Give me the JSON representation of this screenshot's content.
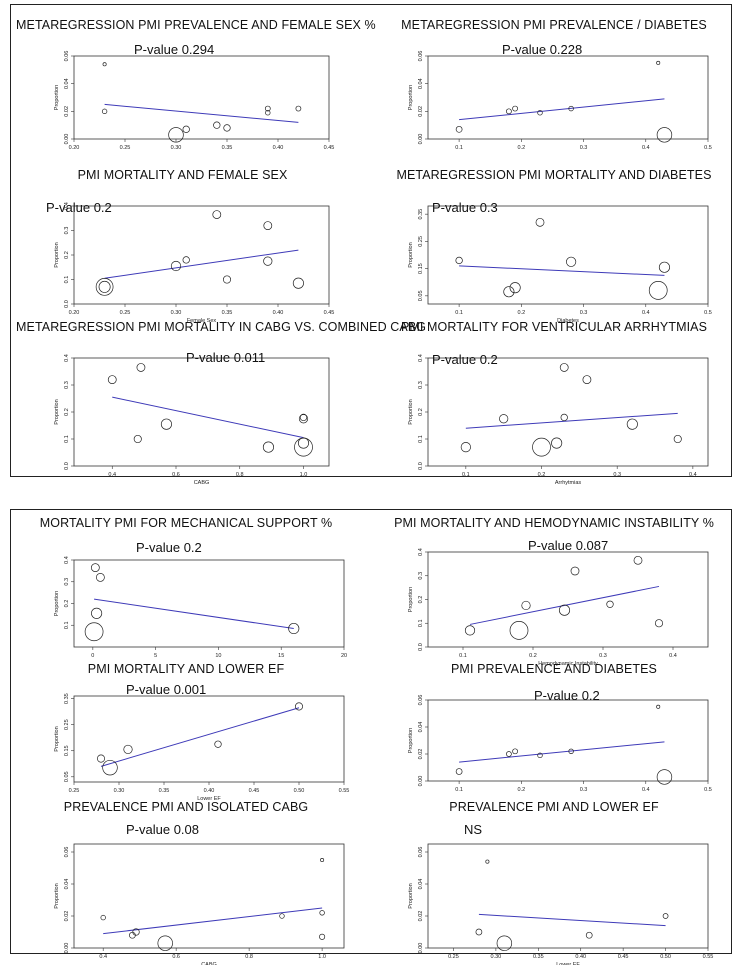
{
  "chart_data": [
    {
      "id": "p1",
      "type": "scatter",
      "title": "METAREGRESSION PMI PREVALENCE AND FEMALE SEX %",
      "annotation": "P-value 0.294",
      "xlabel": "",
      "ylabel": "Proportion",
      "xlim": [
        0.2,
        0.45
      ],
      "ylim": [
        0,
        0.06
      ],
      "xticks": [
        "0.20",
        "0.25",
        "0.30",
        "0.35",
        "0.40",
        "0.45"
      ],
      "yticks": [
        "0.00",
        "0.02",
        "0.04",
        "0.06"
      ],
      "points": [
        {
          "x": 0.23,
          "y": 0.054,
          "w": 0.3
        },
        {
          "x": 0.23,
          "y": 0.02,
          "w": 0.6
        },
        {
          "x": 0.3,
          "y": 0.003,
          "w": 6
        },
        {
          "x": 0.31,
          "y": 0.007,
          "w": 1.2
        },
        {
          "x": 0.34,
          "y": 0.01,
          "w": 1.2
        },
        {
          "x": 0.35,
          "y": 0.008,
          "w": 1.2
        },
        {
          "x": 0.39,
          "y": 0.022,
          "w": 0.7
        },
        {
          "x": 0.39,
          "y": 0.019,
          "w": 0.6
        },
        {
          "x": 0.42,
          "y": 0.022,
          "w": 0.7
        }
      ],
      "line": [
        {
          "x": 0.23,
          "y": 0.025
        },
        {
          "x": 0.42,
          "y": 0.012
        }
      ]
    },
    {
      "id": "p2",
      "type": "scatter",
      "title": "METAREGRESSION PMI PREVALENCE / DIABETES",
      "annotation": "P-value 0.228",
      "xlabel": "",
      "ylabel": "Proportion",
      "xlim": [
        0.05,
        0.5
      ],
      "ylim": [
        0,
        0.06
      ],
      "xticks": [
        "0.1",
        "0.2",
        "0.3",
        "0.4",
        "0.5"
      ],
      "yticks": [
        "0.00",
        "0.02",
        "0.04",
        "0.06"
      ],
      "points": [
        {
          "x": 0.1,
          "y": 0.007,
          "w": 1
        },
        {
          "x": 0.18,
          "y": 0.02,
          "w": 0.7
        },
        {
          "x": 0.19,
          "y": 0.022,
          "w": 0.7
        },
        {
          "x": 0.23,
          "y": 0.019,
          "w": 0.6
        },
        {
          "x": 0.28,
          "y": 0.022,
          "w": 0.6
        },
        {
          "x": 0.42,
          "y": 0.055,
          "w": 0.3
        },
        {
          "x": 0.43,
          "y": 0.003,
          "w": 6
        }
      ],
      "line": [
        {
          "x": 0.1,
          "y": 0.014
        },
        {
          "x": 0.43,
          "y": 0.029
        }
      ]
    },
    {
      "id": "p3",
      "type": "scatter",
      "title": "PMI MORTALITY AND FEMALE SEX",
      "annotation": "P-value 0.2",
      "xlabel": "Female Sex",
      "ylabel": "Proportion",
      "xlim": [
        0.2,
        0.45
      ],
      "ylim": [
        0,
        0.4
      ],
      "xticks": [
        "0.20",
        "0.25",
        "0.30",
        "0.35",
        "0.40",
        "0.45"
      ],
      "yticks": [
        "0.0",
        "0.1",
        "0.2",
        "0.3",
        "0.4"
      ],
      "points": [
        {
          "x": 0.23,
          "y": 0.07,
          "w": 8
        },
        {
          "x": 0.23,
          "y": 0.07,
          "w": 3.5
        },
        {
          "x": 0.3,
          "y": 0.155,
          "w": 2.5
        },
        {
          "x": 0.31,
          "y": 0.18,
          "w": 1.2
        },
        {
          "x": 0.34,
          "y": 0.365,
          "w": 1.8
        },
        {
          "x": 0.35,
          "y": 0.1,
          "w": 1.5
        },
        {
          "x": 0.39,
          "y": 0.32,
          "w": 1.8
        },
        {
          "x": 0.39,
          "y": 0.175,
          "w": 2
        },
        {
          "x": 0.42,
          "y": 0.085,
          "w": 3
        }
      ],
      "line": [
        {
          "x": 0.23,
          "y": 0.105
        },
        {
          "x": 0.42,
          "y": 0.22
        }
      ]
    },
    {
      "id": "p4",
      "type": "scatter",
      "title": "METAREGRESSION PMI MORTALITY AND DIABETES",
      "annotation": "P-value 0.3",
      "xlabel": "Diabetes",
      "ylabel": "Proportion",
      "xlim": [
        0.05,
        0.5
      ],
      "ylim": [
        0.02,
        0.38
      ],
      "xticks": [
        "0.1",
        "0.2",
        "0.3",
        "0.4",
        "0.5"
      ],
      "yticks": [
        "0.05",
        "0.15",
        "0.25",
        "0.35"
      ],
      "points": [
        {
          "x": 0.1,
          "y": 0.18,
          "w": 1.2
        },
        {
          "x": 0.18,
          "y": 0.065,
          "w": 3
        },
        {
          "x": 0.19,
          "y": 0.08,
          "w": 3
        },
        {
          "x": 0.23,
          "y": 0.32,
          "w": 1.8
        },
        {
          "x": 0.28,
          "y": 0.175,
          "w": 2.5
        },
        {
          "x": 0.42,
          "y": 0.07,
          "w": 9
        },
        {
          "x": 0.43,
          "y": 0.155,
          "w": 3
        }
      ],
      "line": [
        {
          "x": 0.1,
          "y": 0.16
        },
        {
          "x": 0.43,
          "y": 0.125
        }
      ]
    },
    {
      "id": "p5",
      "type": "scatter",
      "title": "METAREGRESSION PMI MORTALITY IN CABG VS. COMBINED CABG",
      "annotation": "P-value 0.011",
      "xlabel": "CABG",
      "ylabel": "Proportion",
      "xlim": [
        0.28,
        1.08
      ],
      "ylim": [
        0,
        0.4
      ],
      "xticks": [
        "0.4",
        "0.6",
        "0.8",
        "1.0"
      ],
      "yticks": [
        "0.0",
        "0.1",
        "0.2",
        "0.3",
        "0.4"
      ],
      "points": [
        {
          "x": 0.4,
          "y": 0.32,
          "w": 1.8
        },
        {
          "x": 0.48,
          "y": 0.1,
          "w": 1.5
        },
        {
          "x": 0.49,
          "y": 0.365,
          "w": 1.8
        },
        {
          "x": 0.57,
          "y": 0.155,
          "w": 3
        },
        {
          "x": 0.89,
          "y": 0.07,
          "w": 3
        },
        {
          "x": 1.0,
          "y": 0.18,
          "w": 1.2
        },
        {
          "x": 1.0,
          "y": 0.175,
          "w": 2
        },
        {
          "x": 1.0,
          "y": 0.085,
          "w": 3
        },
        {
          "x": 1.0,
          "y": 0.07,
          "w": 9
        }
      ],
      "line": [
        {
          "x": 0.4,
          "y": 0.255
        },
        {
          "x": 1.0,
          "y": 0.105
        }
      ]
    },
    {
      "id": "p6",
      "type": "scatter",
      "title": "PMI MORTALITY FOR VENTRICULAR ARRHYTMIAS",
      "annotation": "P-value 0.2",
      "xlabel": "Arrhytmias",
      "ylabel": "Proportion",
      "xlim": [
        0.05,
        0.42
      ],
      "ylim": [
        0,
        0.4
      ],
      "xticks": [
        "0.1",
        "0.2",
        "0.3",
        "0.4"
      ],
      "yticks": [
        "0.0",
        "0.1",
        "0.2",
        "0.3",
        "0.4"
      ],
      "points": [
        {
          "x": 0.1,
          "y": 0.07,
          "w": 2.5
        },
        {
          "x": 0.15,
          "y": 0.175,
          "w": 2
        },
        {
          "x": 0.2,
          "y": 0.07,
          "w": 9
        },
        {
          "x": 0.22,
          "y": 0.085,
          "w": 3
        },
        {
          "x": 0.23,
          "y": 0.365,
          "w": 1.8
        },
        {
          "x": 0.23,
          "y": 0.18,
          "w": 1.2
        },
        {
          "x": 0.26,
          "y": 0.32,
          "w": 1.8
        },
        {
          "x": 0.32,
          "y": 0.155,
          "w": 3
        },
        {
          "x": 0.38,
          "y": 0.1,
          "w": 1.5
        }
      ],
      "line": [
        {
          "x": 0.1,
          "y": 0.14
        },
        {
          "x": 0.38,
          "y": 0.195
        }
      ]
    },
    {
      "id": "p7",
      "type": "scatter",
      "title": "MORTALITY PMI FOR MECHANICAL SUPPORT %",
      "annotation": "P-value 0.2",
      "xlabel": "",
      "ylabel": "Proportion",
      "xlim": [
        -1.5,
        20
      ],
      "ylim": [
        0,
        0.4
      ],
      "xticks": [
        "0",
        "5",
        "10",
        "15",
        "20"
      ],
      "yticks": [
        "0.1",
        "0.2",
        "0.3",
        "0.4"
      ],
      "points": [
        {
          "x": 0.1,
          "y": 0.07,
          "w": 9
        },
        {
          "x": 0.2,
          "y": 0.365,
          "w": 1.8
        },
        {
          "x": 0.3,
          "y": 0.155,
          "w": 3
        },
        {
          "x": 0.6,
          "y": 0.32,
          "w": 1.8
        },
        {
          "x": 16,
          "y": 0.085,
          "w": 3
        }
      ],
      "line": [
        {
          "x": 0.1,
          "y": 0.22
        },
        {
          "x": 16,
          "y": 0.085
        }
      ]
    },
    {
      "id": "p8",
      "type": "scatter",
      "title": "PMI MORTALITY AND HEMODYNAMIC INSTABILITY %",
      "annotation": "P-value 0.087",
      "xlabel": "Hemodynamic Instability",
      "ylabel": "Proportion",
      "xlim": [
        0.05,
        0.45
      ],
      "ylim": [
        0,
        0.4
      ],
      "xticks": [
        "0.1",
        "0.2",
        "0.3",
        "0.4"
      ],
      "yticks": [
        "0.0",
        "0.1",
        "0.2",
        "0.3",
        "0.4"
      ],
      "points": [
        {
          "x": 0.11,
          "y": 0.07,
          "w": 2.5
        },
        {
          "x": 0.18,
          "y": 0.07,
          "w": 9
        },
        {
          "x": 0.19,
          "y": 0.175,
          "w": 2
        },
        {
          "x": 0.245,
          "y": 0.155,
          "w": 3
        },
        {
          "x": 0.26,
          "y": 0.32,
          "w": 1.8
        },
        {
          "x": 0.31,
          "y": 0.18,
          "w": 1.2
        },
        {
          "x": 0.35,
          "y": 0.365,
          "w": 1.8
        },
        {
          "x": 0.38,
          "y": 0.1,
          "w": 1.5
        }
      ],
      "line": [
        {
          "x": 0.11,
          "y": 0.095
        },
        {
          "x": 0.38,
          "y": 0.255
        }
      ]
    },
    {
      "id": "p9",
      "type": "scatter",
      "title": "PMI MORTALITY AND LOWER EF",
      "annotation": "P-value 0.001",
      "xlabel": "Lower EF",
      "ylabel": "Proportion",
      "xlim": [
        0.25,
        0.55
      ],
      "ylim": [
        0.03,
        0.36
      ],
      "xticks": [
        "0.25",
        "0.30",
        "0.35",
        "0.40",
        "0.45",
        "0.50",
        "0.55"
      ],
      "yticks": [
        "0.05",
        "0.15",
        "0.25",
        "0.35"
      ],
      "points": [
        {
          "x": 0.28,
          "y": 0.12,
          "w": 1.5
        },
        {
          "x": 0.29,
          "y": 0.085,
          "w": 6
        },
        {
          "x": 0.31,
          "y": 0.155,
          "w": 2
        },
        {
          "x": 0.41,
          "y": 0.175,
          "w": 1.2
        },
        {
          "x": 0.5,
          "y": 0.32,
          "w": 1.5
        }
      ],
      "line": [
        {
          "x": 0.28,
          "y": 0.09
        },
        {
          "x": 0.5,
          "y": 0.315
        }
      ]
    },
    {
      "id": "p10",
      "type": "scatter",
      "title": "PMI PREVALENCE AND DIABETES",
      "annotation": "P-value 0.2",
      "xlabel": "",
      "ylabel": "Proportion",
      "xlim": [
        0.05,
        0.5
      ],
      "ylim": [
        0,
        0.06
      ],
      "xticks": [
        "0.1",
        "0.2",
        "0.3",
        "0.4",
        "0.5"
      ],
      "yticks": [
        "0.00",
        "0.02",
        "0.04",
        "0.06"
      ],
      "points": [
        {
          "x": 0.1,
          "y": 0.007,
          "w": 1
        },
        {
          "x": 0.18,
          "y": 0.02,
          "w": 0.7
        },
        {
          "x": 0.19,
          "y": 0.022,
          "w": 0.7
        },
        {
          "x": 0.23,
          "y": 0.019,
          "w": 0.6
        },
        {
          "x": 0.28,
          "y": 0.022,
          "w": 0.6
        },
        {
          "x": 0.42,
          "y": 0.055,
          "w": 0.3
        },
        {
          "x": 0.43,
          "y": 0.003,
          "w": 6
        }
      ],
      "line": [
        {
          "x": 0.1,
          "y": 0.014
        },
        {
          "x": 0.43,
          "y": 0.029
        }
      ]
    },
    {
      "id": "p11",
      "type": "scatter",
      "title": "PREVALENCE PMI AND ISOLATED CABG",
      "annotation": "P-value 0.08",
      "xlabel": "CABG",
      "ylabel": "Proportion",
      "xlim": [
        0.32,
        1.06
      ],
      "ylim": [
        0,
        0.065
      ],
      "xticks": [
        "0.4",
        "0.6",
        "0.8",
        "1.0"
      ],
      "yticks": [
        "0.00",
        "0.02",
        "0.04",
        "0.06"
      ],
      "points": [
        {
          "x": 0.4,
          "y": 0.019,
          "w": 0.6
        },
        {
          "x": 0.48,
          "y": 0.008,
          "w": 1
        },
        {
          "x": 0.49,
          "y": 0.01,
          "w": 1.2
        },
        {
          "x": 0.57,
          "y": 0.003,
          "w": 6
        },
        {
          "x": 0.89,
          "y": 0.02,
          "w": 0.6
        },
        {
          "x": 1.0,
          "y": 0.055,
          "w": 0.3
        },
        {
          "x": 1.0,
          "y": 0.022,
          "w": 0.6
        },
        {
          "x": 1.0,
          "y": 0.007,
          "w": 0.8
        }
      ],
      "line": [
        {
          "x": 0.4,
          "y": 0.009
        },
        {
          "x": 1.0,
          "y": 0.025
        }
      ]
    },
    {
      "id": "p12",
      "type": "scatter",
      "title": "PREVALENCE PMI AND LOWER EF",
      "annotation": "NS",
      "xlabel": "Lower EF",
      "ylabel": "Proportion",
      "xlim": [
        0.22,
        0.55
      ],
      "ylim": [
        0,
        0.065
      ],
      "xticks": [
        "0.25",
        "0.30",
        "0.35",
        "0.40",
        "0.45",
        "0.50",
        "0.55"
      ],
      "yticks": [
        "0.00",
        "0.02",
        "0.04",
        "0.06"
      ],
      "points": [
        {
          "x": 0.28,
          "y": 0.01,
          "w": 1
        },
        {
          "x": 0.29,
          "y": 0.054,
          "w": 0.3
        },
        {
          "x": 0.31,
          "y": 0.003,
          "w": 6
        },
        {
          "x": 0.41,
          "y": 0.008,
          "w": 1
        },
        {
          "x": 0.5,
          "y": 0.02,
          "w": 0.7
        }
      ],
      "line": [
        {
          "x": 0.28,
          "y": 0.021
        },
        {
          "x": 0.5,
          "y": 0.014
        }
      ]
    }
  ]
}
